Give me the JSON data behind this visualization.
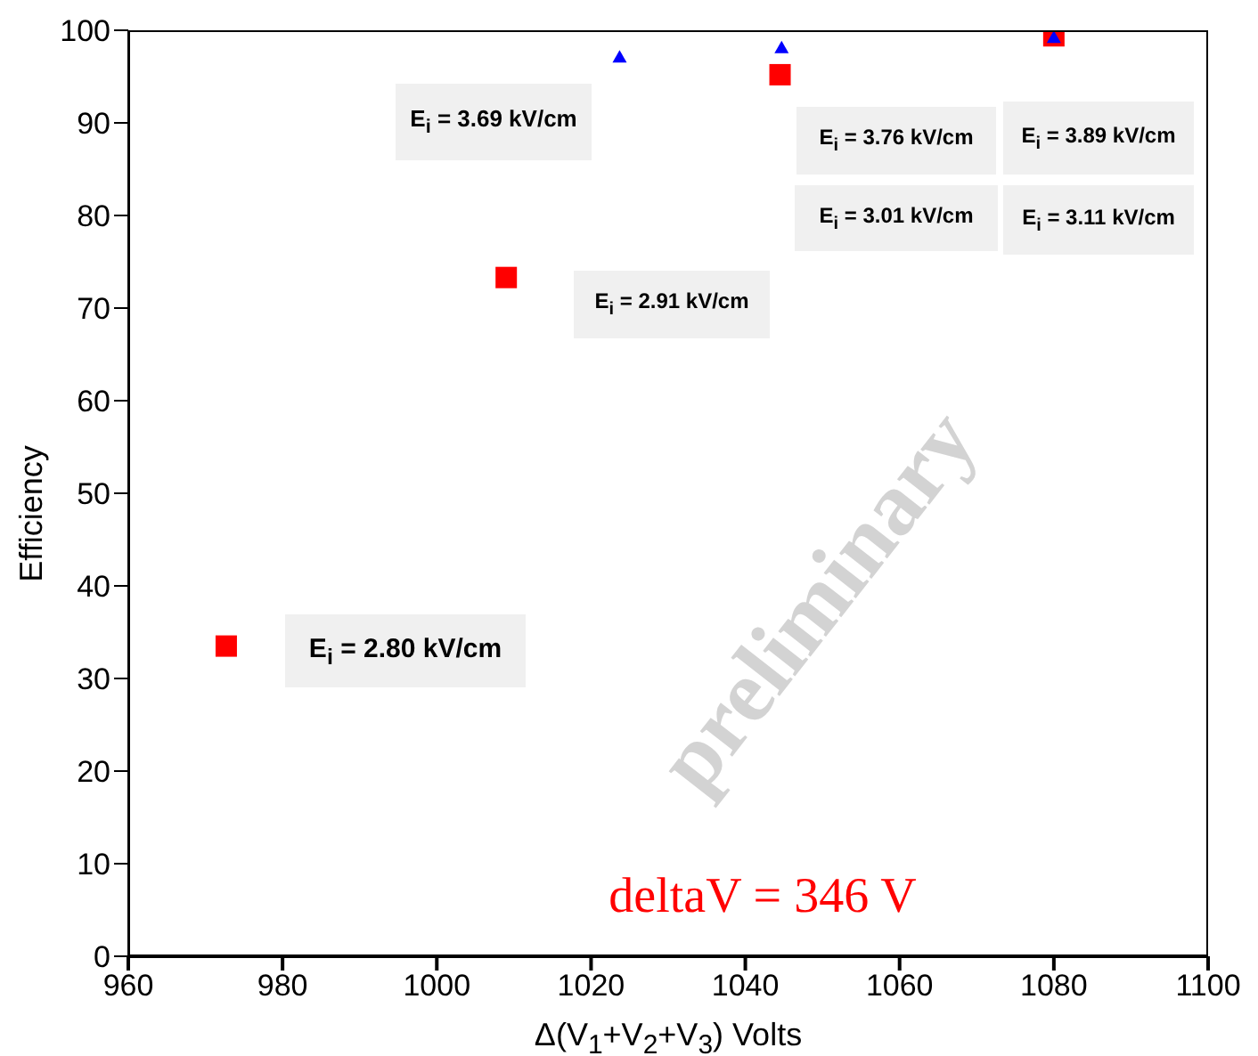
{
  "chart_data": {
    "type": "scatter",
    "xlabel": "Δ(V$_{1}$+V$_{2}$+V$_{3}$)  Volts",
    "ylabel": "Efficiency",
    "xlim": [
      960,
      1100
    ],
    "xticks": [
      960,
      980,
      1000,
      1020,
      1040,
      1060,
      1080,
      1100
    ],
    "ylim": [
      0,
      100
    ],
    "yticks": [
      0,
      10,
      20,
      30,
      40,
      50,
      60,
      70,
      80,
      90,
      100
    ],
    "grid": false,
    "series": [
      {
        "color": "#ff0000",
        "marker": "square",
        "x": [
          972.7,
          1009,
          1044.5,
          1080
        ],
        "values": [
          33.5,
          73.3,
          95.2,
          99.4
        ]
      },
      {
        "color": "#0000ff",
        "marker": "triangle",
        "x": [
          1023.7,
          1044.7,
          1080
        ],
        "values": [
          97.1,
          98.1,
          99.2
        ]
      }
    ],
    "annotations": [
      "E$_{i}$ = 3.69 kV/cm",
      "E$_{i}$ = 3.76 kV/cm",
      "E$_{i}$ = 3.89 kV/cm",
      "E$_{i}$ = 3.01 kV/cm",
      "E$_{i}$ = 3.11 kV/cm",
      "E$_{i}$ = 2.91 kV/cm",
      "E$_{i}$ = 2.80 kV/cm",
      "preliminary",
      "deltaV = 346 V"
    ]
  }
}
